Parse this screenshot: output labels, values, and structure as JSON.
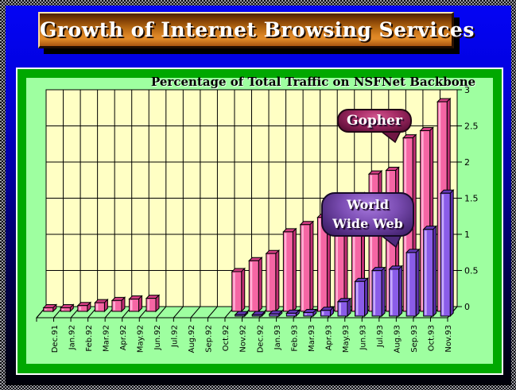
{
  "banner": {
    "title": "Growth of Internet Browsing Services"
  },
  "chart_data": {
    "type": "bar",
    "title": "Percentage of Total Traffic on NSFNet Backbone",
    "categories": [
      "Dec.91",
      "Jan.92",
      "Feb.92",
      "Mar.92",
      "Apr.92",
      "May.92",
      "Jun.92",
      "Jul.92",
      "Aug.92",
      "Sep.92",
      "Oct.92",
      "Nov.92",
      "Dec.92",
      "Jan.93",
      "Feb.93",
      "Mar.93",
      "Apr.93",
      "May.93",
      "Jun.93",
      "Jul.93",
      "Aug.93",
      "Sep.93",
      "Oct.93",
      "Nov.93"
    ],
    "series": [
      {
        "name": "Gopher",
        "color": "#f566a4",
        "highlight": "#ffb0d4",
        "top_color": "#d13c82",
        "side_color": "#c22e74",
        "values": [
          0.05,
          0.05,
          0.08,
          0.12,
          0.15,
          0.17,
          0.18,
          0,
          0,
          0,
          0,
          0.55,
          0.7,
          0.8,
          1.1,
          1.2,
          1.3,
          1.45,
          1.6,
          1.9,
          1.95,
          2.4,
          2.5,
          2.9
        ]
      },
      {
        "name": "World Wide Web",
        "color": "#8a5ce8",
        "highlight": "#c6aafa",
        "top_color": "#6438b8",
        "side_color": "#5c30ac",
        "values": [
          0,
          0,
          0,
          0,
          0,
          0,
          0,
          0,
          0,
          0,
          0,
          0.02,
          0.02,
          0.03,
          0.04,
          0.05,
          0.08,
          0.2,
          0.48,
          0.63,
          0.65,
          0.88,
          1.2,
          1.7
        ]
      }
    ],
    "ylim": [
      0,
      3
    ],
    "ytick_labels": [
      "0",
      "0.5",
      "1",
      "1.5",
      "2",
      "2.5",
      "3"
    ],
    "grid": true,
    "legend_position": "floating-callouts",
    "plot_bg": "#ffffc4",
    "floor_bg": "#9effa0"
  },
  "callouts": {
    "gopher": {
      "label": "Gopher"
    },
    "www": {
      "line1": "World",
      "line2": "Wide Web"
    }
  },
  "colors": {
    "slide_blue_top": "#0404f4",
    "slide_blue_bottom": "#000008",
    "frame_green": "#00a800",
    "chart_bg_green": "#9effa0",
    "plot_yellow": "#ffffc4",
    "banner_orange": "#dc8524",
    "banner_text": "#ffffff",
    "gopher_pink": "#f566a4",
    "www_purple": "#8a5ce8"
  }
}
